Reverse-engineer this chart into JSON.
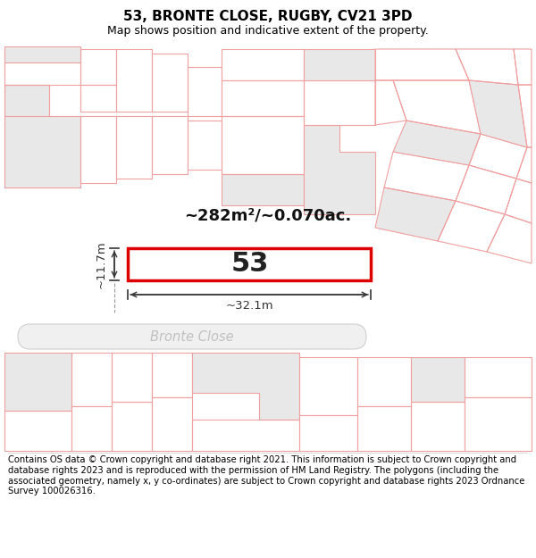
{
  "title": "53, BRONTE CLOSE, RUGBY, CV21 3PD",
  "subtitle": "Map shows position and indicative extent of the property.",
  "footer": "Contains OS data © Crown copyright and database right 2021. This information is subject to Crown copyright and database rights 2023 and is reproduced with the permission of HM Land Registry. The polygons (including the associated geometry, namely x, y co-ordinates) are subject to Crown copyright and database rights 2023 Ordnance Survey 100026316.",
  "area_text": "~282m²/~0.070ac.",
  "plot_number": "53",
  "dim_width": "~32.1m",
  "dim_height": "~11.7m",
  "background_color": "#ffffff",
  "map_bg": "#ffffff",
  "plot_fill": "#ffffff",
  "plot_edge_color": "#dd0000",
  "building_fill": "#e8e8e8",
  "line_color": "#f0a0a0",
  "title_fontsize": 11,
  "subtitle_fontsize": 9,
  "footer_fontsize": 7.2,
  "road_label_color": "#c0c0c0",
  "dim_line_color": "#333333",
  "number_color": "#222222",
  "area_color": "#111111"
}
